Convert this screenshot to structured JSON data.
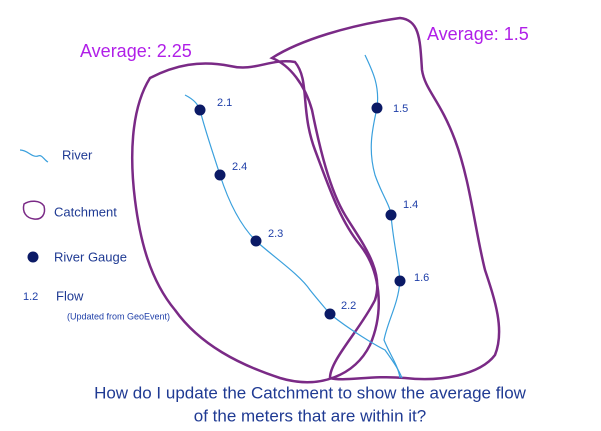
{
  "catchments": [
    {
      "label": "Average: 2.25"
    },
    {
      "label": "Average: 1.5"
    }
  ],
  "gauges": [
    {
      "flow": "2.1"
    },
    {
      "flow": "2.4"
    },
    {
      "flow": "2.3"
    },
    {
      "flow": "2.2"
    },
    {
      "flow": "1.5"
    },
    {
      "flow": "1.4"
    },
    {
      "flow": "1.6"
    }
  ],
  "legend": {
    "river": "River",
    "catchment": "Catchment",
    "gauge": "River Gauge",
    "flow_sample": "1.2",
    "flow": "Flow",
    "flow_note": "(Updated from GeoEvent)"
  },
  "question": [
    "How do I update the Catchment to show the average flow",
    "of the meters that are within it?"
  ]
}
